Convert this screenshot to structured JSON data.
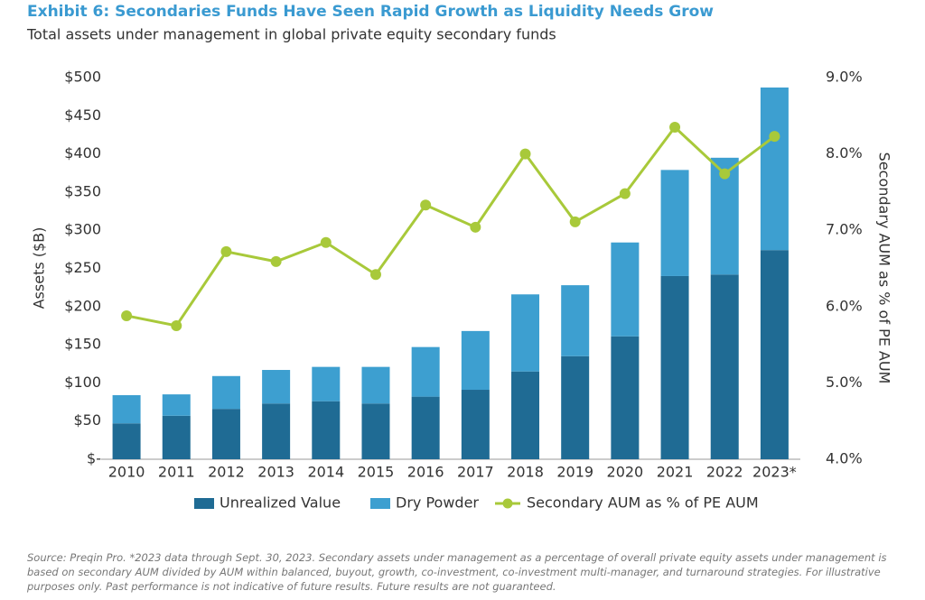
{
  "chart_data": {
    "type": "bar-line",
    "title": "Exhibit 6: Secondaries Funds Have Seen Rapid Growth as Liquidity Needs Grow",
    "subtitle": "Total assets under management in global private equity secondary funds",
    "y_label": "Assets ($B)",
    "y2_label": "Secondary AUM as % of PE AUM",
    "categories": [
      "2010",
      "2011",
      "2012",
      "2013",
      "2014",
      "2015",
      "2016",
      "2017",
      "2018",
      "2019",
      "2020",
      "2021",
      "2022",
      "2023*"
    ],
    "series": [
      {
        "name": "Unrealized Value",
        "type": "bar",
        "color": "#1f6b94",
        "values": [
          47,
          57,
          66,
          73,
          76,
          73,
          82,
          91,
          115,
          135,
          161,
          240,
          242,
          274
        ]
      },
      {
        "name": "Dry Powder",
        "type": "bar",
        "color": "#3d9fd0",
        "values": [
          37,
          28,
          43,
          44,
          45,
          48,
          65,
          77,
          101,
          93,
          123,
          139,
          153,
          213
        ]
      },
      {
        "name": "Secondary AUM as % of PE AUM",
        "type": "line",
        "axis": "y2",
        "color": "#a8c93a",
        "values": [
          5.88,
          5.75,
          6.72,
          6.59,
          6.84,
          6.42,
          7.33,
          7.04,
          8.0,
          7.11,
          7.48,
          8.35,
          7.74,
          8.23
        ]
      }
    ],
    "stacked": true,
    "ylim": [
      0,
      500
    ],
    "yticks": [
      {
        "value": 0,
        "label": "$-"
      },
      {
        "value": 50,
        "label": "$50"
      },
      {
        "value": 100,
        "label": "$100"
      },
      {
        "value": 150,
        "label": "$150"
      },
      {
        "value": 200,
        "label": "$200"
      },
      {
        "value": 250,
        "label": "$250"
      },
      {
        "value": 300,
        "label": "$300"
      },
      {
        "value": 350,
        "label": "$350"
      },
      {
        "value": 400,
        "label": "$400"
      },
      {
        "value": 450,
        "label": "$450"
      },
      {
        "value": 500,
        "label": "$500"
      }
    ],
    "y2lim": [
      4,
      9
    ],
    "y2ticks": [
      {
        "value": 4,
        "label": "4.0%"
      },
      {
        "value": 5,
        "label": "5.0%"
      },
      {
        "value": 6,
        "label": "6.0%"
      },
      {
        "value": 7,
        "label": "7.0%"
      },
      {
        "value": 8,
        "label": "8.0%"
      },
      {
        "value": 9,
        "label": "9.0%"
      }
    ],
    "grid": false,
    "legend": "bottom",
    "note": "Source: Preqin Pro. *2023 data through Sept. 30, 2023. Secondary assets under management as a percentage of overall private equity assets under management is based on secondary AUM divided by AUM within balanced, buyout, growth, co-investment, co-investment multi-manager, and turnaround strategies. For illustrative purposes only. Past performance is not indicative of future results. Future results are not guaranteed."
  }
}
